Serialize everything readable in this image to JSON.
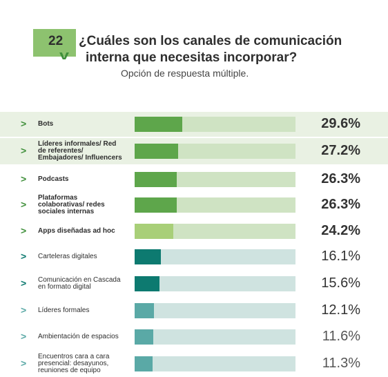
{
  "question": {
    "number": "22",
    "title_line1": "¿Cuáles son los canales de comunicación",
    "title_line2": "interna que necesitas incorporar?",
    "subtitle": "Opción de respuesta múltiple."
  },
  "chart_data": {
    "type": "bar",
    "orientation": "horizontal",
    "xlim": [
      0,
      100
    ],
    "categories": [
      "Bots",
      "Líderes informales/ Red de referentes/ Embajadores/ Influencers",
      "Podcasts",
      "Plataformas colaborativas/ redes sociales internas",
      "Apps diseñadas ad hoc",
      "Carteleras digitales",
      "Comunicación en Cascada en formato digital",
      "Líderes formales",
      "Ambientación de espacios",
      "Encuentros cara a cara presencial: desayunos, reuniones de equipo"
    ],
    "label_lines": [
      [
        "Bots"
      ],
      [
        "Líderes informales/ Red",
        "de referentes/",
        "Embajadores/ Influencers"
      ],
      [
        "Podcasts"
      ],
      [
        "Plataformas",
        "colaborativas/ redes",
        "sociales internas"
      ],
      [
        "Apps diseñadas ad hoc"
      ],
      [
        "Carteleras digitales"
      ],
      [
        "Comunicación en Cascada",
        "en formato digital"
      ],
      [
        "Líderes formales"
      ],
      [
        "Ambientación de espacios"
      ],
      [
        "Encuentros cara a cara",
        "presencial: desayunos,",
        "reuniones de equipo"
      ]
    ],
    "values": [
      29.6,
      27.2,
      26.3,
      26.3,
      24.2,
      16.1,
      15.6,
      12.1,
      11.6,
      11.3
    ],
    "value_labels": [
      "29.6%",
      "27.2%",
      "26.3%",
      "26.3%",
      "24.2%",
      "16.1%",
      "15.6%",
      "12.1%",
      "11.6%",
      "11.3%"
    ],
    "highlighted_rows": [
      0,
      1
    ],
    "colors": {
      "fill": [
        "#5ea64b",
        "#5ea64b",
        "#5ea64b",
        "#5ea64b",
        "#a8cf78",
        "#0d7a70",
        "#0d7a70",
        "#5aa9a6",
        "#5aa9a6",
        "#5aa9a6"
      ],
      "track": [
        "#cfe3c3",
        "#cfe3c3",
        "#cfe3c3",
        "#cfe3c3",
        "#cfe3c3",
        "#cfe3e0",
        "#cfe3e0",
        "#cfe3e0",
        "#cfe3e0",
        "#cfe3e0"
      ],
      "chevron": [
        "#3f8f3a",
        "#3f8f3a",
        "#3f8f3a",
        "#3f8f3a",
        "#3f8f3a",
        "#0d7a70",
        "#0d7a70",
        "#5aa9a6",
        "#5aa9a6",
        "#5aa9a6"
      ],
      "highlight_bg": "#e9f1e3"
    },
    "value_weights": [
      "bold",
      "bold",
      "bold",
      "bold",
      "bold",
      "normal",
      "normal",
      "normal",
      "light",
      "light"
    ]
  }
}
